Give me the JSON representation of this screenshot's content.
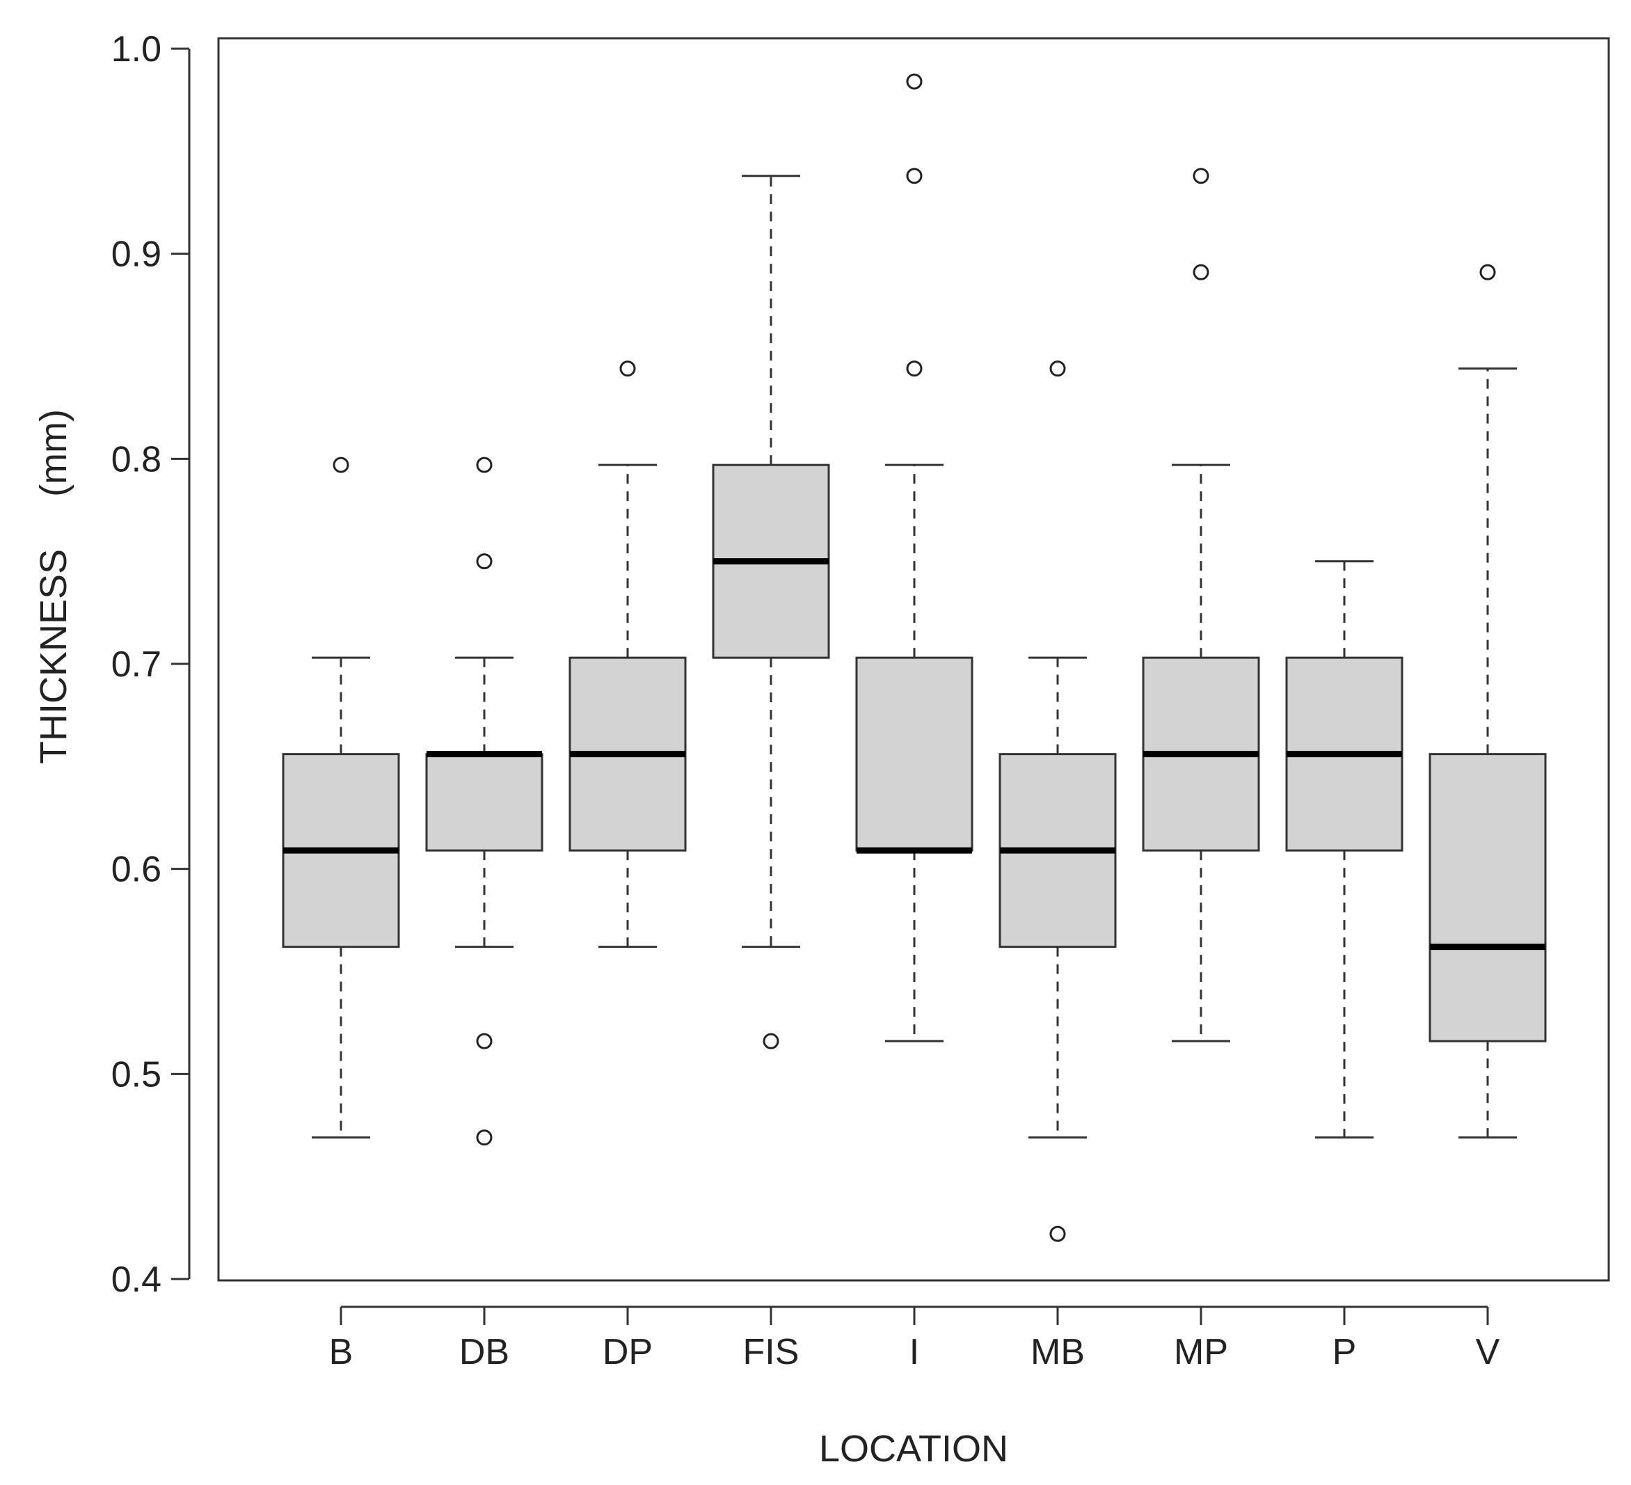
{
  "chart_data": {
    "type": "boxplot",
    "xlabel": "LOCATION",
    "ylabel": "THICKNESS     (mm)",
    "ylim": [
      0.4,
      1.0
    ],
    "yticks": [
      0.4,
      0.5,
      0.6,
      0.7,
      0.8,
      0.9,
      1.0
    ],
    "ytick_labels": [
      "0.4",
      "0.5",
      "0.6",
      "0.7",
      "0.8",
      "0.9",
      "1.0"
    ],
    "grid": false,
    "box_fill": "#d3d3d3",
    "categories": [
      "B",
      "DB",
      "DP",
      "FIS",
      "I",
      "MB",
      "MP",
      "P",
      "V"
    ],
    "boxes": [
      {
        "label": "B",
        "whisker_low": 0.469,
        "q1": 0.562,
        "median": 0.609,
        "q3": 0.656,
        "whisker_high": 0.703,
        "outliers": [
          0.797
        ]
      },
      {
        "label": "DB",
        "whisker_low": 0.562,
        "q1": 0.609,
        "median": 0.656,
        "q3": 0.656,
        "whisker_high": 0.703,
        "outliers": [
          0.797,
          0.75,
          0.516,
          0.469
        ]
      },
      {
        "label": "DP",
        "whisker_low": 0.562,
        "q1": 0.609,
        "median": 0.656,
        "q3": 0.703,
        "whisker_high": 0.797,
        "outliers": [
          0.844
        ]
      },
      {
        "label": "FIS",
        "whisker_low": 0.562,
        "q1": 0.703,
        "median": 0.75,
        "q3": 0.797,
        "whisker_high": 0.938,
        "outliers": [
          0.516
        ]
      },
      {
        "label": "I",
        "whisker_low": 0.516,
        "q1": 0.609,
        "median": 0.609,
        "q3": 0.703,
        "whisker_high": 0.797,
        "outliers": [
          0.984,
          0.938,
          0.844
        ]
      },
      {
        "label": "MB",
        "whisker_low": 0.469,
        "q1": 0.562,
        "median": 0.609,
        "q3": 0.656,
        "whisker_high": 0.703,
        "outliers": [
          0.844,
          0.422
        ]
      },
      {
        "label": "MP",
        "whisker_low": 0.516,
        "q1": 0.609,
        "median": 0.656,
        "q3": 0.703,
        "whisker_high": 0.797,
        "outliers": [
          0.938,
          0.891
        ]
      },
      {
        "label": "P",
        "whisker_low": 0.469,
        "q1": 0.609,
        "median": 0.656,
        "q3": 0.703,
        "whisker_high": 0.75,
        "outliers": []
      },
      {
        "label": "V",
        "whisker_low": 0.469,
        "q1": 0.516,
        "median": 0.562,
        "q3": 0.656,
        "whisker_high": 0.844,
        "outliers": [
          0.891
        ]
      }
    ]
  }
}
